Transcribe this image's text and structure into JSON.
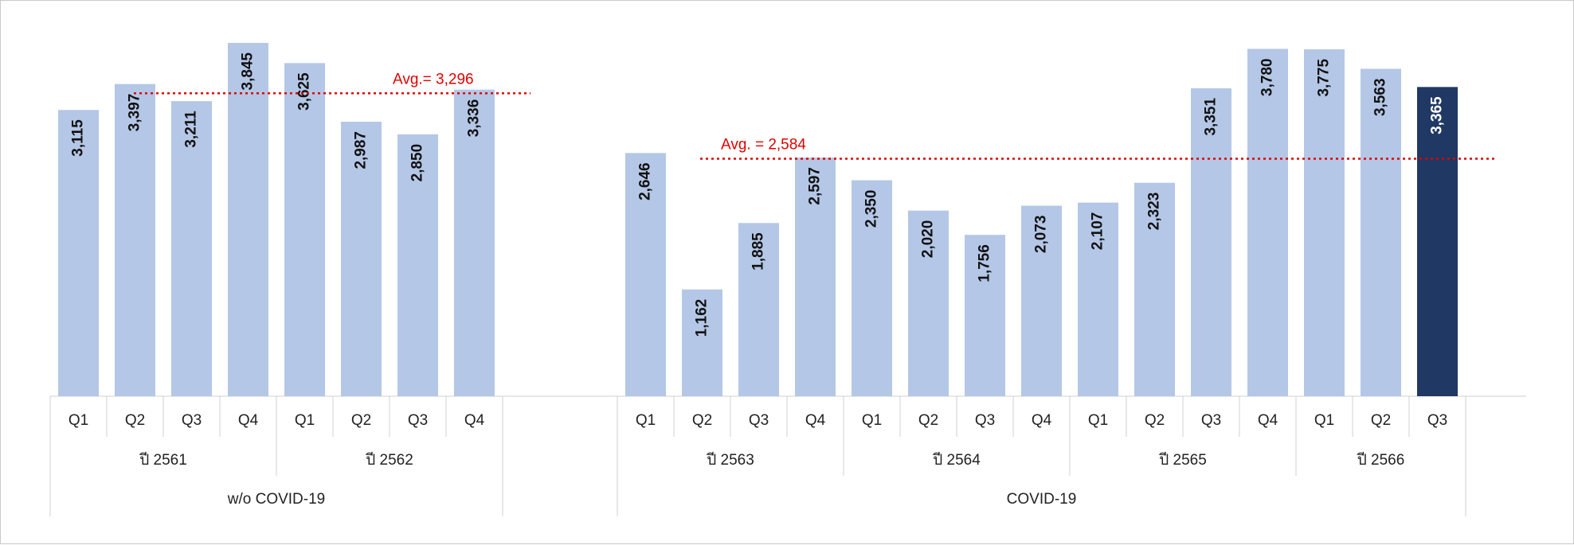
{
  "chart_data": {
    "type": "bar",
    "value_labels_rotated": true,
    "colors": {
      "bar": "#b4c7e7",
      "highlight": "#203864",
      "avg_line": "#e00000",
      "label_dark": "#111111",
      "label_light": "#ffffff",
      "grid": "#d0d0d0"
    },
    "groups": [
      {
        "name": "w/o COVID-19",
        "average": {
          "label": "Avg.= 3,296",
          "value": 3296
        },
        "years": [
          {
            "label": "ปี 2561",
            "quarters": [
              "Q1",
              "Q2",
              "Q3",
              "Q4"
            ],
            "values": [
              3115,
              3397,
              3211,
              3845
            ],
            "value_labels": [
              "3,115",
              "3,397",
              "3,211",
              "3,845"
            ]
          },
          {
            "label": "ปี 2562",
            "quarters": [
              "Q1",
              "Q2",
              "Q3",
              "Q4"
            ],
            "values": [
              3625,
              2987,
              2850,
              3336
            ],
            "value_labels": [
              "3,625",
              "2,987",
              "2,850",
              "3,336"
            ]
          }
        ]
      },
      {
        "name": "COVID-19",
        "average": {
          "label": "Avg. = 2,584",
          "value": 2584
        },
        "years": [
          {
            "label": "ปี 2563",
            "quarters": [
              "Q1",
              "Q2",
              "Q3",
              "Q4"
            ],
            "values": [
              2646,
              1162,
              1885,
              2597
            ],
            "value_labels": [
              "2,646",
              "1,162",
              "1,885",
              "2,597"
            ]
          },
          {
            "label": "ปี 2564",
            "quarters": [
              "Q1",
              "Q2",
              "Q3",
              "Q4"
            ],
            "values": [
              2350,
              2020,
              1756,
              2073
            ],
            "value_labels": [
              "2,350",
              "2,020",
              "1,756",
              "2,073"
            ]
          },
          {
            "label": "ปี 2565",
            "quarters": [
              "Q1",
              "Q2",
              "Q3",
              "Q4"
            ],
            "values": [
              2107,
              2323,
              3351,
              3780
            ],
            "value_labels": [
              "2,107",
              "2,323",
              "3,351",
              "3,780"
            ]
          },
          {
            "label": "ปี 2566",
            "quarters": [
              "Q1",
              "Q2",
              "Q3"
            ],
            "values": [
              3775,
              3563,
              3365
            ],
            "value_labels": [
              "3,775",
              "3,563",
              "3,365"
            ],
            "highlight_last": true
          }
        ]
      }
    ]
  }
}
